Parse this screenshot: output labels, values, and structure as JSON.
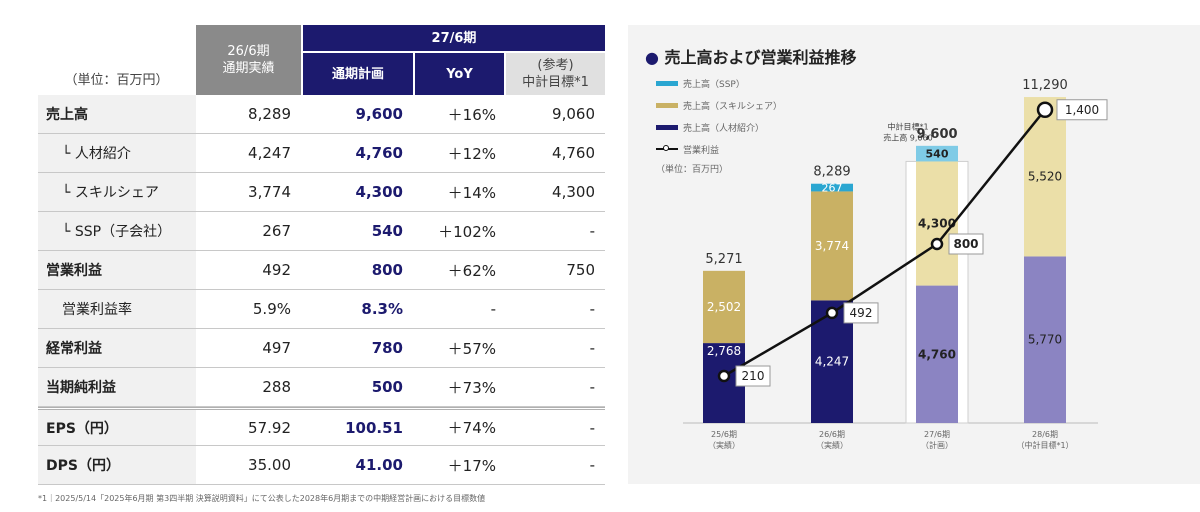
{
  "table": {
    "unit_label": "（単位：百万円）",
    "col_fy26": "26/6期\n通期実績",
    "col_fy27": "27/6期",
    "col_plan": "通期計画",
    "col_yoy": "YoY",
    "col_ref": "(参考)\n中計目標*1",
    "rows": [
      {
        "label": "売上高",
        "fy26": "8,289",
        "plan": "9,600",
        "yoy": "＋16%",
        "ref": "9,060"
      },
      {
        "label": "└ 人材紹介",
        "fy26": "4,247",
        "plan": "4,760",
        "yoy": "＋12%",
        "ref": "4,760"
      },
      {
        "label": "└ スキルシェア",
        "fy26": "3,774",
        "plan": "4,300",
        "yoy": "＋14%",
        "ref": "4,300"
      },
      {
        "label": "└ SSP（子会社）",
        "fy26": "267",
        "plan": "540",
        "yoy": "＋102%",
        "ref": "-"
      },
      {
        "label": "営業利益",
        "fy26": "492",
        "plan": "800",
        "yoy": "＋62%",
        "ref": "750"
      },
      {
        "label": "営業利益率",
        "fy26": "5.9%",
        "plan": "8.3%",
        "yoy": "-",
        "ref": "-"
      },
      {
        "label": "経常利益",
        "fy26": "497",
        "plan": "780",
        "yoy": "＋57%",
        "ref": "-"
      },
      {
        "label": "当期純利益",
        "fy26": "288",
        "plan": "500",
        "yoy": "＋73%",
        "ref": "-"
      },
      {
        "label": "EPS（円）",
        "fy26": "57.92",
        "plan": "100.51",
        "yoy": "＋74%",
        "ref": "-"
      },
      {
        "label": "DPS（円）",
        "fy26": "35.00",
        "plan": "41.00",
        "yoy": "＋17%",
        "ref": "-"
      }
    ],
    "footnote": "*1｜2025/5/14「2025年6月期 第3四半期 決算説明資料」にて公表した2028年6月期までの中期経営計画における目標数値"
  },
  "chart_data": {
    "type": "bar",
    "title": "売上高および営業利益推移",
    "unit_note": "（単位：百万円）",
    "categories": [
      "25/6期\n（実績）",
      "26/6期\n（実績）",
      "27/6期\n（計画）",
      "28/6期\n（中計目標*1）"
    ],
    "series": [
      {
        "name": "売上高（人材紹介）",
        "values": [
          2768,
          4247,
          4760,
          5770
        ],
        "color": "#1c1a6e",
        "plan_color": "#8b84c2"
      },
      {
        "name": "売上高（スキルシェア）",
        "values": [
          2502,
          3774,
          4300,
          5520
        ],
        "color": "#c9b164",
        "plan_color": "#ebdfa8"
      },
      {
        "name": "売上高（SSP）",
        "values": [
          0,
          267,
          540,
          0
        ],
        "color": "#2aa6d1",
        "plan_color": "#7fcbe6"
      }
    ],
    "totals": [
      5271,
      8289,
      9600,
      11290
    ],
    "line": {
      "name": "営業利益",
      "values": [
        210,
        492,
        800,
        1400
      ],
      "color": "#111111"
    },
    "reference": {
      "label": "中計目標*1\n売上高 9,060",
      "value": 9060,
      "category_index": 2
    },
    "ylim": [
      0,
      12400
    ],
    "line_ylim": [
      0,
      1600
    ],
    "legend_placement": "top-left"
  }
}
